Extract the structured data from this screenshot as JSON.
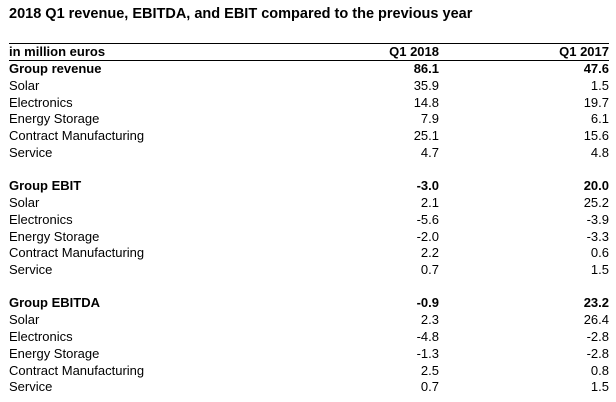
{
  "title": "2018 Q1 revenue, EBITDA, and EBIT compared to the previous year",
  "table": {
    "header": {
      "label": "in million euros",
      "col1": "Q1 2018",
      "col2": "Q1 2017"
    },
    "sections": [
      {
        "group": {
          "label": "Group revenue",
          "v1": "86.1",
          "v2": "47.6"
        },
        "rows": [
          {
            "label": "Solar",
            "v1": "35.9",
            "v2": "1.5"
          },
          {
            "label": "Electronics",
            "v1": "14.8",
            "v2": "19.7"
          },
          {
            "label": "Energy Storage",
            "v1": "7.9",
            "v2": "6.1"
          },
          {
            "label": "Contract Manufacturing",
            "v1": "25.1",
            "v2": "15.6"
          },
          {
            "label": "Service",
            "v1": "4.7",
            "v2": "4.8"
          }
        ]
      },
      {
        "group": {
          "label": "Group EBIT",
          "v1": "-3.0",
          "v2": "20.0"
        },
        "rows": [
          {
            "label": "Solar",
            "v1": "2.1",
            "v2": "25.2"
          },
          {
            "label": "Electronics",
            "v1": "-5.6",
            "v2": "-3.9"
          },
          {
            "label": "Energy Storage",
            "v1": "-2.0",
            "v2": "-3.3"
          },
          {
            "label": "Contract Manufacturing",
            "v1": "2.2",
            "v2": "0.6"
          },
          {
            "label": "Service",
            "v1": "0.7",
            "v2": "1.5"
          }
        ]
      },
      {
        "group": {
          "label": "Group EBITDA",
          "v1": "-0.9",
          "v2": "23.2"
        },
        "rows": [
          {
            "label": "Solar",
            "v1": "2.3",
            "v2": "26.4"
          },
          {
            "label": "Electronics",
            "v1": "-4.8",
            "v2": "-2.8"
          },
          {
            "label": "Energy Storage",
            "v1": "-1.3",
            "v2": "-2.8"
          },
          {
            "label": "Contract Manufacturing",
            "v1": "2.5",
            "v2": "0.8"
          },
          {
            "label": "Service",
            "v1": "0.7",
            "v2": "1.5"
          }
        ]
      }
    ]
  }
}
